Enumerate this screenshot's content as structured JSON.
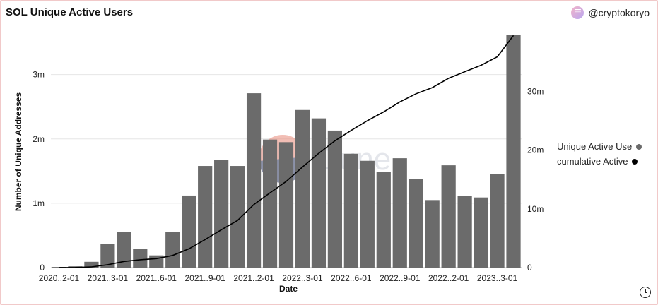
{
  "header": {
    "title": "SOL Unique Active Users",
    "author": "@cryptokoryo"
  },
  "colors": {
    "bar": "#6b6b6b",
    "line": "#000000",
    "watermark_accent": "#e98a7a",
    "watermark_dark": "#2f3a66"
  },
  "watermark": {
    "text": "Dune"
  },
  "chart_data": {
    "type": "bar",
    "title": "SOL Unique Active Users",
    "xlabel": "Date",
    "ylabel": "Number of Unique Addresses",
    "categories": [
      "2020-12-01",
      "2021-01-01",
      "2021-02-01",
      "2021-03-01",
      "2021-04-01",
      "2021-05-01",
      "2021-06-01",
      "2021-07-01",
      "2021-08-01",
      "2021-09-01",
      "2021-10-01",
      "2021-11-01",
      "2021-12-01",
      "2022-01-01",
      "2022-02-01",
      "2022-03-01",
      "2022-04-01",
      "2022-05-01",
      "2022-06-01",
      "2022-07-01",
      "2022-08-01",
      "2022-09-01",
      "2022-10-01",
      "2022-11-01",
      "2022-12-01",
      "2023-01-01",
      "2023-02-01",
      "2023-03-01",
      "2023-04-01"
    ],
    "x_tick_labels": [
      {
        "at": "2020-12-01",
        "label": "2020..2-01"
      },
      {
        "at": "2021-03-01",
        "label": "2021..3-01"
      },
      {
        "at": "2021-06-01",
        "label": "2021..6-01"
      },
      {
        "at": "2021-09-01",
        "label": "2021..9-01"
      },
      {
        "at": "2021-12-01",
        "label": "2021..2-01"
      },
      {
        "at": "2022-03-01",
        "label": "2022..3-01"
      },
      {
        "at": "2022-06-01",
        "label": "2022..6-01"
      },
      {
        "at": "2022-09-01",
        "label": "2022..9-01"
      },
      {
        "at": "2022-12-01",
        "label": "2022..2-01"
      },
      {
        "at": "2023-03-01",
        "label": "2023..3-01"
      }
    ],
    "series": [
      {
        "name": "Unique Active Use",
        "type": "bar",
        "axis": "left",
        "values": [
          0.01,
          0.02,
          0.09,
          0.37,
          0.55,
          0.29,
          0.19,
          0.55,
          1.12,
          1.58,
          1.67,
          1.58,
          2.71,
          1.99,
          1.95,
          2.45,
          2.32,
          2.13,
          1.77,
          1.66,
          1.49,
          1.7,
          1.38,
          1.05,
          1.59,
          1.11,
          1.09,
          1.45,
          3.62
        ]
      },
      {
        "name": "cumulative Active",
        "type": "line",
        "axis": "right",
        "values": [
          0.01,
          0.03,
          0.12,
          0.49,
          1.04,
          1.33,
          1.52,
          2.07,
          3.19,
          4.77,
          6.44,
          8.02,
          10.73,
          12.72,
          14.67,
          17.12,
          19.44,
          21.57,
          23.34,
          25.0,
          26.49,
          28.19,
          29.57,
          30.62,
          32.21,
          33.32,
          34.41,
          35.86,
          39.48
        ]
      }
    ],
    "y_left": {
      "range": [
        0,
        3.6
      ],
      "ticks": [
        0,
        1,
        2,
        3
      ],
      "tick_labels": [
        "0",
        "1m",
        "2m",
        "3m"
      ]
    },
    "y_right": {
      "range": [
        0,
        39.4
      ],
      "ticks": [
        0,
        10,
        20,
        30
      ],
      "tick_labels": [
        "0",
        "10m",
        "20m",
        "30m"
      ]
    },
    "grid": true,
    "legend_position": "right"
  }
}
